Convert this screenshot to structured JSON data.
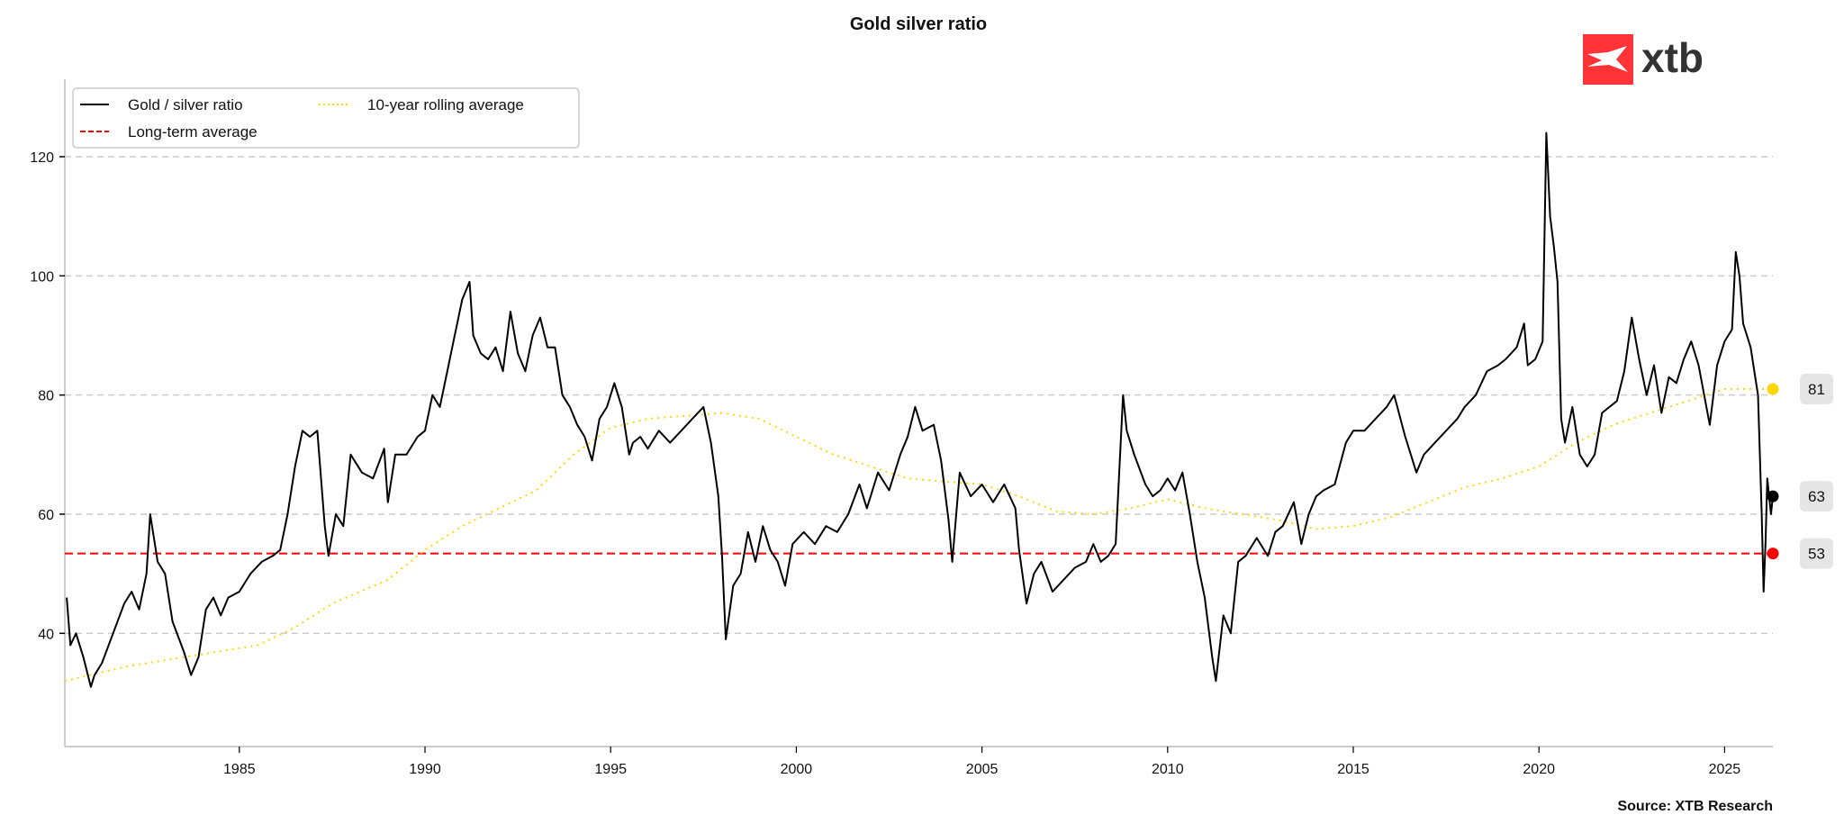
{
  "chart_data": {
    "type": "line",
    "title": "Gold silver ratio",
    "source": "Source: XTB Research",
    "logo_text": "xtb",
    "xlabel": "",
    "ylabel": "",
    "xlim": [
      1980.3,
      2026.3
    ],
    "ylim": [
      21,
      133
    ],
    "xticks": [
      1985,
      1990,
      1995,
      2000,
      2005,
      2010,
      2015,
      2020,
      2025
    ],
    "yticks": [
      40,
      60,
      80,
      100,
      120
    ],
    "grid": "horizontal dashed",
    "legend": {
      "placement": "top-left",
      "items": [
        "Gold / silver ratio",
        "10-year rolling average",
        "Long-term average"
      ]
    },
    "colors": {
      "ratio": "#000000",
      "rolling": "#FFD700",
      "longterm": "#FF0000",
      "logo": "#FF3338",
      "label_bg": "#E5E5E5"
    },
    "series": [
      {
        "name": "Gold / silver ratio",
        "x": [
          1980.35,
          1980.45,
          1980.6,
          1980.8,
          1981.0,
          1981.1,
          1981.3,
          1981.6,
          1981.9,
          1982.1,
          1982.3,
          1982.5,
          1982.6,
          1982.8,
          1983.0,
          1983.2,
          1983.5,
          1983.7,
          1983.9,
          1984.1,
          1984.3,
          1984.5,
          1984.7,
          1985.0,
          1985.3,
          1985.6,
          1985.9,
          1986.1,
          1986.3,
          1986.5,
          1986.7,
          1986.9,
          1987.1,
          1987.3,
          1987.4,
          1987.6,
          1987.8,
          1988.0,
          1988.3,
          1988.6,
          1988.9,
          1989.0,
          1989.2,
          1989.5,
          1989.8,
          1990.0,
          1990.2,
          1990.4,
          1990.6,
          1990.8,
          1991.0,
          1991.2,
          1991.3,
          1991.5,
          1991.7,
          1991.9,
          1992.1,
          1992.3,
          1992.5,
          1992.7,
          1992.9,
          1993.1,
          1993.3,
          1993.5,
          1993.7,
          1993.9,
          1994.1,
          1994.3,
          1994.5,
          1994.7,
          1994.9,
          1995.1,
          1995.3,
          1995.5,
          1995.6,
          1995.8,
          1996.0,
          1996.3,
          1996.6,
          1996.9,
          1997.2,
          1997.5,
          1997.7,
          1997.9,
          1998.0,
          1998.1,
          1998.3,
          1998.5,
          1998.7,
          1998.9,
          1999.1,
          1999.3,
          1999.5,
          1999.7,
          1999.9,
          2000.2,
          2000.5,
          2000.8,
          2001.1,
          2001.4,
          2001.7,
          2001.9,
          2002.2,
          2002.5,
          2002.8,
          2003.0,
          2003.2,
          2003.4,
          2003.7,
          2003.9,
          2004.1,
          2004.2,
          2004.4,
          2004.7,
          2005.0,
          2005.3,
          2005.6,
          2005.9,
          2006.0,
          2006.2,
          2006.4,
          2006.6,
          2006.9,
          2007.2,
          2007.5,
          2007.8,
          2008.0,
          2008.2,
          2008.4,
          2008.6,
          2008.8,
          2008.9,
          2009.1,
          2009.4,
          2009.6,
          2009.8,
          2010.0,
          2010.2,
          2010.4,
          2010.6,
          2010.8,
          2011.0,
          2011.2,
          2011.3,
          2011.5,
          2011.7,
          2011.9,
          2012.1,
          2012.4,
          2012.7,
          2012.9,
          2013.1,
          2013.4,
          2013.6,
          2013.8,
          2014.0,
          2014.2,
          2014.5,
          2014.8,
          2015.0,
          2015.3,
          2015.6,
          2015.9,
          2016.1,
          2016.4,
          2016.7,
          2016.9,
          2017.2,
          2017.5,
          2017.8,
          2018.0,
          2018.3,
          2018.6,
          2018.9,
          2019.1,
          2019.4,
          2019.6,
          2019.7,
          2019.9,
          2020.1,
          2020.2,
          2020.3,
          2020.4,
          2020.5,
          2020.6,
          2020.7,
          2020.9,
          2021.1,
          2021.3,
          2021.5,
          2021.7,
          2021.9,
          2022.1,
          2022.3,
          2022.5,
          2022.7,
          2022.9,
          2023.1,
          2023.3,
          2023.5,
          2023.7,
          2023.9,
          2024.1,
          2024.3,
          2024.6,
          2024.8,
          2025.0,
          2025.2,
          2025.3,
          2025.4,
          2025.5,
          2025.7,
          2025.9,
          2026.0,
          2026.05,
          2026.1,
          2026.15,
          2026.25,
          2026.3
        ],
        "values": [
          46,
          38,
          40,
          36,
          31,
          33,
          35,
          40,
          45,
          47,
          44,
          50,
          60,
          52,
          50,
          42,
          37,
          33,
          36,
          44,
          46,
          43,
          46,
          47,
          50,
          52,
          53,
          54,
          60,
          68,
          74,
          73,
          74,
          58,
          53,
          60,
          58,
          70,
          67,
          66,
          71,
          62,
          70,
          70,
          73,
          74,
          80,
          78,
          84,
          90,
          96,
          99,
          90,
          87,
          86,
          88,
          84,
          94,
          87,
          84,
          90,
          93,
          88,
          88,
          80,
          78,
          75,
          73,
          69,
          76,
          78,
          82,
          78,
          70,
          72,
          73,
          71,
          74,
          72,
          74,
          76,
          78,
          72,
          63,
          53,
          39,
          48,
          50,
          57,
          52,
          58,
          54,
          52,
          48,
          55,
          57,
          55,
          58,
          57,
          60,
          65,
          61,
          67,
          64,
          70,
          73,
          78,
          74,
          75,
          69,
          59,
          52,
          67,
          63,
          65,
          62,
          65,
          61,
          54,
          45,
          50,
          52,
          47,
          49,
          51,
          52,
          55,
          52,
          53,
          55,
          80,
          74,
          70,
          65,
          63,
          64,
          66,
          64,
          67,
          60,
          52,
          46,
          36,
          32,
          43,
          40,
          52,
          53,
          56,
          53,
          57,
          58,
          62,
          55,
          60,
          63,
          64,
          65,
          72,
          74,
          74,
          76,
          78,
          80,
          73,
          67,
          70,
          72,
          74,
          76,
          78,
          80,
          84,
          85,
          86,
          88,
          92,
          85,
          86,
          89,
          124,
          110,
          105,
          99,
          76,
          72,
          78,
          70,
          68,
          70,
          77,
          78,
          79,
          84,
          93,
          86,
          80,
          85,
          77,
          83,
          82,
          86,
          89,
          85,
          75,
          85,
          89,
          91,
          104,
          100,
          92,
          88,
          80,
          60,
          47,
          55,
          66,
          60,
          63
        ]
      },
      {
        "name": "10-year rolling average",
        "x": [
          1980.3,
          1982,
          1984,
          1985.5,
          1986.5,
          1987.5,
          1989,
          1990,
          1991,
          1992,
          1993,
          1994,
          1995,
          1996,
          1997,
          1998,
          1999,
          2000,
          2001,
          2002,
          2003,
          2004,
          2005,
          2006,
          2007,
          2008,
          2009,
          2010,
          2011,
          2012,
          2013,
          2014,
          2015,
          2016,
          2017,
          2018,
          2019,
          2020,
          2021,
          2022,
          2023,
          2024,
          2025,
          2026.3
        ],
        "values": [
          32,
          34.5,
          36.5,
          38,
          41,
          45,
          49,
          54,
          58,
          61,
          64,
          70,
          74.5,
          76,
          76.5,
          77,
          76,
          73,
          70,
          68,
          66,
          65.5,
          65,
          63,
          60.5,
          60,
          61,
          62.5,
          61,
          60,
          59,
          57.5,
          58,
          59.5,
          62,
          64.5,
          66,
          68,
          72,
          75,
          77,
          79,
          81,
          81
        ]
      },
      {
        "name": "Long-term average",
        "value": 53.4
      }
    ],
    "end_labels": [
      {
        "series": "10-year rolling average",
        "text": "81",
        "value": 81
      },
      {
        "series": "Gold / silver ratio",
        "text": "63",
        "value": 63
      },
      {
        "series": "Long-term average",
        "text": "53",
        "value": 53.4
      }
    ]
  }
}
